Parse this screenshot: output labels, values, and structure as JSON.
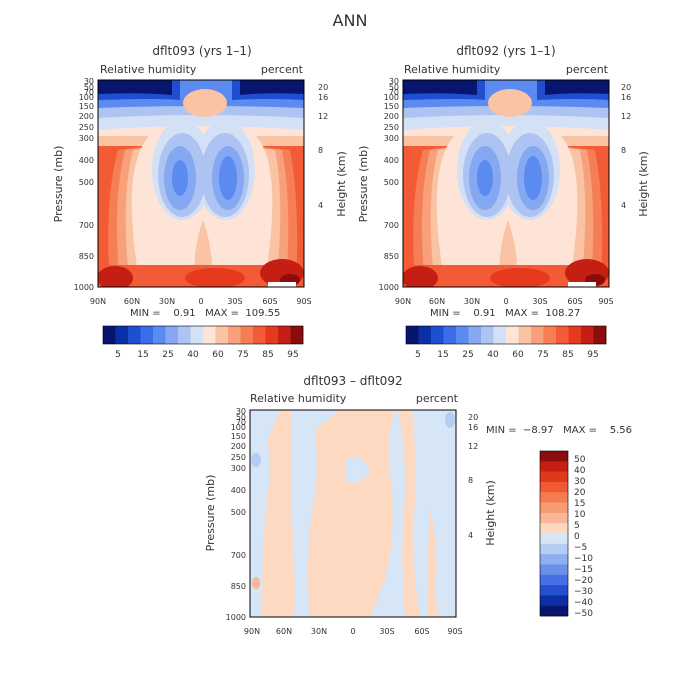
{
  "page": {
    "title": "ANN"
  },
  "chart_data": [
    {
      "type": "heatmap",
      "title": "dflt093 (yrs 1–1)",
      "left_label": "Relative humidity",
      "right_label": "percent",
      "ylabel": "Pressure (mb)",
      "ylabel_right": "Height (km)",
      "x_ticks": [
        "90N",
        "60N",
        "30N",
        "0",
        "30S",
        "60S",
        "90S"
      ],
      "y_ticks": [
        "30",
        "50",
        "70",
        "100",
        "150",
        "200",
        "250",
        "300",
        "400",
        "500",
        "700",
        "850",
        "1000"
      ],
      "height_ticks": [
        "20",
        "16",
        "12",
        "8",
        "4"
      ],
      "ylim": [
        30,
        1000
      ],
      "y_scale": "log",
      "stats": "MIN =    0.91   MAX =  109.55",
      "min": 0.91,
      "max": 109.55,
      "colorbar": {
        "labels": [
          "5",
          "15",
          "25",
          "40",
          "60",
          "75",
          "85",
          "95"
        ],
        "colors": [
          "#08156f",
          "#0d2fa6",
          "#1f4fd0",
          "#3a6ee8",
          "#5b8af0",
          "#85a8f2",
          "#adc4f2",
          "#d4e0f5",
          "#fde4d6",
          "#f9c3a4",
          "#f7a07a",
          "#f57e55",
          "#f25b35",
          "#e53a1f",
          "#c41f12",
          "#8a0c0c"
        ]
      }
    },
    {
      "type": "heatmap",
      "title": "dflt092 (yrs 1–1)",
      "left_label": "Relative humidity",
      "right_label": "percent",
      "ylabel": "Pressure (mb)",
      "ylabel_right": "Height (km)",
      "x_ticks": [
        "90N",
        "60N",
        "30N",
        "0",
        "30S",
        "60S",
        "90S"
      ],
      "y_ticks": [
        "30",
        "50",
        "70",
        "100",
        "150",
        "200",
        "250",
        "300",
        "400",
        "500",
        "700",
        "850",
        "1000"
      ],
      "height_ticks": [
        "20",
        "16",
        "12",
        "8",
        "4"
      ],
      "ylim": [
        30,
        1000
      ],
      "y_scale": "log",
      "stats": "MIN =    0.91   MAX =  108.27",
      "min": 0.91,
      "max": 108.27,
      "colorbar": {
        "labels": [
          "5",
          "15",
          "25",
          "40",
          "60",
          "75",
          "85",
          "95"
        ],
        "colors": [
          "#08156f",
          "#0d2fa6",
          "#1f4fd0",
          "#3a6ee8",
          "#5b8af0",
          "#85a8f2",
          "#adc4f2",
          "#d4e0f5",
          "#fde4d6",
          "#f9c3a4",
          "#f7a07a",
          "#f57e55",
          "#f25b35",
          "#e53a1f",
          "#c41f12",
          "#8a0c0c"
        ]
      }
    },
    {
      "type": "heatmap",
      "title": "dflt093 – dflt092",
      "left_label": "Relative humidity",
      "right_label": "percent",
      "ylabel": "Pressure (mb)",
      "ylabel_right": "Height (km)",
      "x_ticks": [
        "90N",
        "60N",
        "30N",
        "0",
        "30S",
        "60S",
        "90S"
      ],
      "y_ticks": [
        "30",
        "50",
        "70",
        "100",
        "150",
        "200",
        "250",
        "300",
        "400",
        "500",
        "700",
        "850",
        "1000"
      ],
      "height_ticks": [
        "20",
        "16",
        "12",
        "8",
        "4"
      ],
      "ylim": [
        30,
        1000
      ],
      "y_scale": "log",
      "stats": "MIN =  −8.97   MAX =    5.56",
      "min": -8.97,
      "max": 5.56,
      "colorbar": {
        "labels": [
          "50",
          "40",
          "30",
          "20",
          "15",
          "10",
          "5",
          "0",
          "−5",
          "−10",
          "−15",
          "−20",
          "−30",
          "−40",
          "−50"
        ],
        "colors": [
          "#8a0c0c",
          "#c41f12",
          "#e0381c",
          "#f05a33",
          "#f57b51",
          "#f89a72",
          "#fab796",
          "#fdd9c2",
          "#d6e6f7",
          "#b3cdf3",
          "#8fb0ef",
          "#6b90ea",
          "#4670e4",
          "#2450cf",
          "#0d2fa6",
          "#08156f"
        ]
      }
    }
  ]
}
